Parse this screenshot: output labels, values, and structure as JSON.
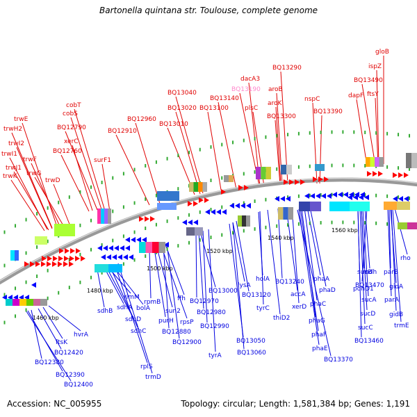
{
  "title": "Bartonella quintana str. Toulouse, complete genome",
  "footer": {
    "accession": "Accession: NC_005955",
    "summary": "Topology: circular; Length: 1,581,384 bp; Genes: 1,191"
  },
  "colors": {
    "forward_label": "#e00000",
    "reverse_label": "#0000e0",
    "highlight_label": "#ff88cc",
    "forward_arrow": "#ff0000",
    "reverse_arrow": "#0000ff",
    "backbone": "#888888"
  },
  "ticks": [
    "1460 kbp",
    "1480 kbp",
    "1500 kbp",
    "1520 kbp",
    "1540 kbp",
    "1560 kbp"
  ],
  "forward_labels": [
    "trwE",
    "trwH2",
    "trwI2",
    "trwI1",
    "trwF",
    "trwJ1",
    "trwG",
    "trwK",
    "trwD",
    "cobT",
    "cobS",
    "BQ12790",
    "xerC",
    "BQ12760",
    "surF1",
    "BQ12910",
    "BQ12960",
    "BQ13040",
    "BQ13020",
    "BQ13010",
    "BQ13140",
    "BQ13100",
    "BQ13190",
    "dacA3",
    "plsC",
    "BQ13290",
    "aroB",
    "aroK",
    "BQ13300",
    "nspC",
    "BQ13390",
    "gloB",
    "ispZ",
    "BQ13490",
    "dapF",
    "ftsY"
  ],
  "reverse_labels": [
    "hvrA",
    "ftsK",
    "BQ12420",
    "BQ12380",
    "BQ12390",
    "BQ12400",
    "sdhB",
    "rimM",
    "sdhA",
    "bolA",
    "sdhD",
    "sdhC",
    "rplS",
    "trmD",
    "rpmB",
    "purH",
    "sun2",
    "ffh",
    "rpsP",
    "BQ12880",
    "BQ12900",
    "BQ13000",
    "BQ12970",
    "BQ12980",
    "BQ12990",
    "tyrA",
    "lysA",
    "BQ13120",
    "BQ13050",
    "BQ13060",
    "holA",
    "tyrC",
    "thiD2",
    "BQ13240",
    "accA",
    "xerD",
    "phaA",
    "phaD",
    "phaC",
    "phaG",
    "phaF",
    "phaE",
    "BQ13370",
    "sucB",
    "pdhD1",
    "mdh",
    "BQ13470",
    "sucA",
    "sucD",
    "sucC",
    "BQ13460",
    "rho",
    "parB",
    "gidA",
    "parA",
    "gidB",
    "trmE"
  ]
}
